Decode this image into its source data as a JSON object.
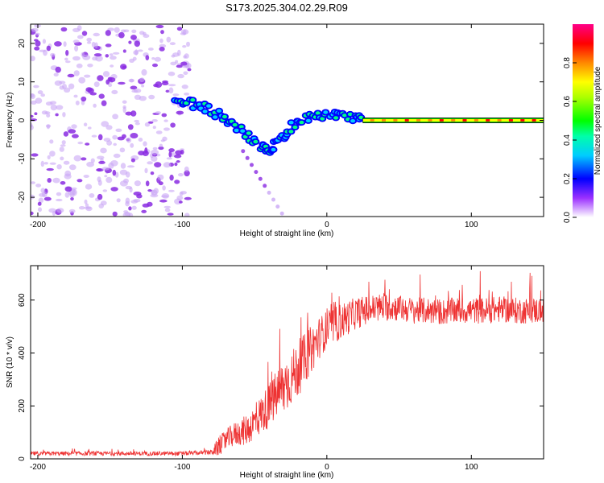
{
  "title": "S173.2025.304.02.29.R09",
  "chart_data": [
    {
      "type": "heatmap",
      "title": "S173.2025.304.02.29.R09",
      "xlabel": "Height of straight line (km)",
      "ylabel": "Frequency (Hz)",
      "xlim": [
        -205,
        150
      ],
      "ylim": [
        -25,
        25
      ],
      "xticks": [
        -200,
        -100,
        0,
        100
      ],
      "yticks": [
        -20,
        -10,
        0,
        10,
        20
      ],
      "colorbar": {
        "label": "Normalized spectral amplitude",
        "range": [
          0,
          1
        ],
        "ticks": [
          "0.0",
          "0.2",
          "0.4",
          "0.6",
          "0.8"
        ],
        "colors": [
          "#ffffff",
          "#8800ff",
          "#0000ff",
          "#00e0ff",
          "#00ff00",
          "#ffff00",
          "#ff8800",
          "#ff0000",
          "#ff0088"
        ]
      },
      "features": [
        {
          "name": "noise",
          "x_range": [
            -205,
            -95
          ],
          "freq_range": [
            -25,
            25
          ],
          "amplitude": 0.1
        },
        {
          "name": "ridge",
          "points": [
            [
              -105,
              4.5
            ],
            [
              -95,
              4.5
            ],
            [
              -85,
              3.5
            ],
            [
              -75,
              1.5
            ],
            [
              -65,
              -1
            ],
            [
              -55,
              -4
            ],
            [
              -45,
              -7
            ],
            [
              -40,
              -8
            ],
            [
              -35,
              -6
            ],
            [
              -28,
              -3
            ],
            [
              -20,
              0
            ],
            [
              -10,
              1
            ],
            [
              0,
              1.5
            ],
            [
              10,
              1
            ],
            [
              20,
              0.5
            ],
            [
              25,
              0
            ]
          ],
          "amplitude": 0.3
        },
        {
          "name": "tail",
          "x_range": [
            25,
            150
          ],
          "freq": 0,
          "amplitude": 0.7
        }
      ]
    },
    {
      "type": "line",
      "xlabel": "Height of straight line (km)",
      "ylabel": "SNR (10 * v/v)",
      "xlim": [
        -205,
        150
      ],
      "ylim": [
        0,
        730
      ],
      "xticks": [
        -200,
        -100,
        0,
        100
      ],
      "yticks": [
        0,
        200,
        400,
        600
      ],
      "series": [
        {
          "name": "SNR",
          "color": "#ee3333",
          "x": [
            -205,
            -180,
            -150,
            -120,
            -100,
            -90,
            -80,
            -75,
            -70,
            -65,
            -60,
            -55,
            -50,
            -45,
            -40,
            -35,
            -30,
            -25,
            -20,
            -15,
            -10,
            -5,
            0,
            10,
            20,
            30,
            40,
            50,
            60,
            70,
            80,
            90,
            100,
            110,
            120,
            130,
            140,
            150
          ],
          "y": [
            20,
            20,
            20,
            20,
            20,
            22,
            25,
            45,
            70,
            90,
            100,
            110,
            140,
            170,
            200,
            240,
            270,
            300,
            340,
            380,
            420,
            460,
            490,
            520,
            550,
            565,
            575,
            570,
            560,
            560,
            555,
            560,
            560,
            560,
            565,
            560,
            560,
            560
          ],
          "amplitude": [
            8,
            8,
            8,
            8,
            8,
            8,
            10,
            35,
            40,
            45,
            50,
            60,
            65,
            75,
            85,
            95,
            110,
            100,
            110,
            95,
            90,
            80,
            70,
            70,
            60,
            55,
            55,
            50,
            50,
            50,
            50,
            50,
            50,
            50,
            50,
            50,
            50,
            50
          ]
        }
      ]
    }
  ]
}
